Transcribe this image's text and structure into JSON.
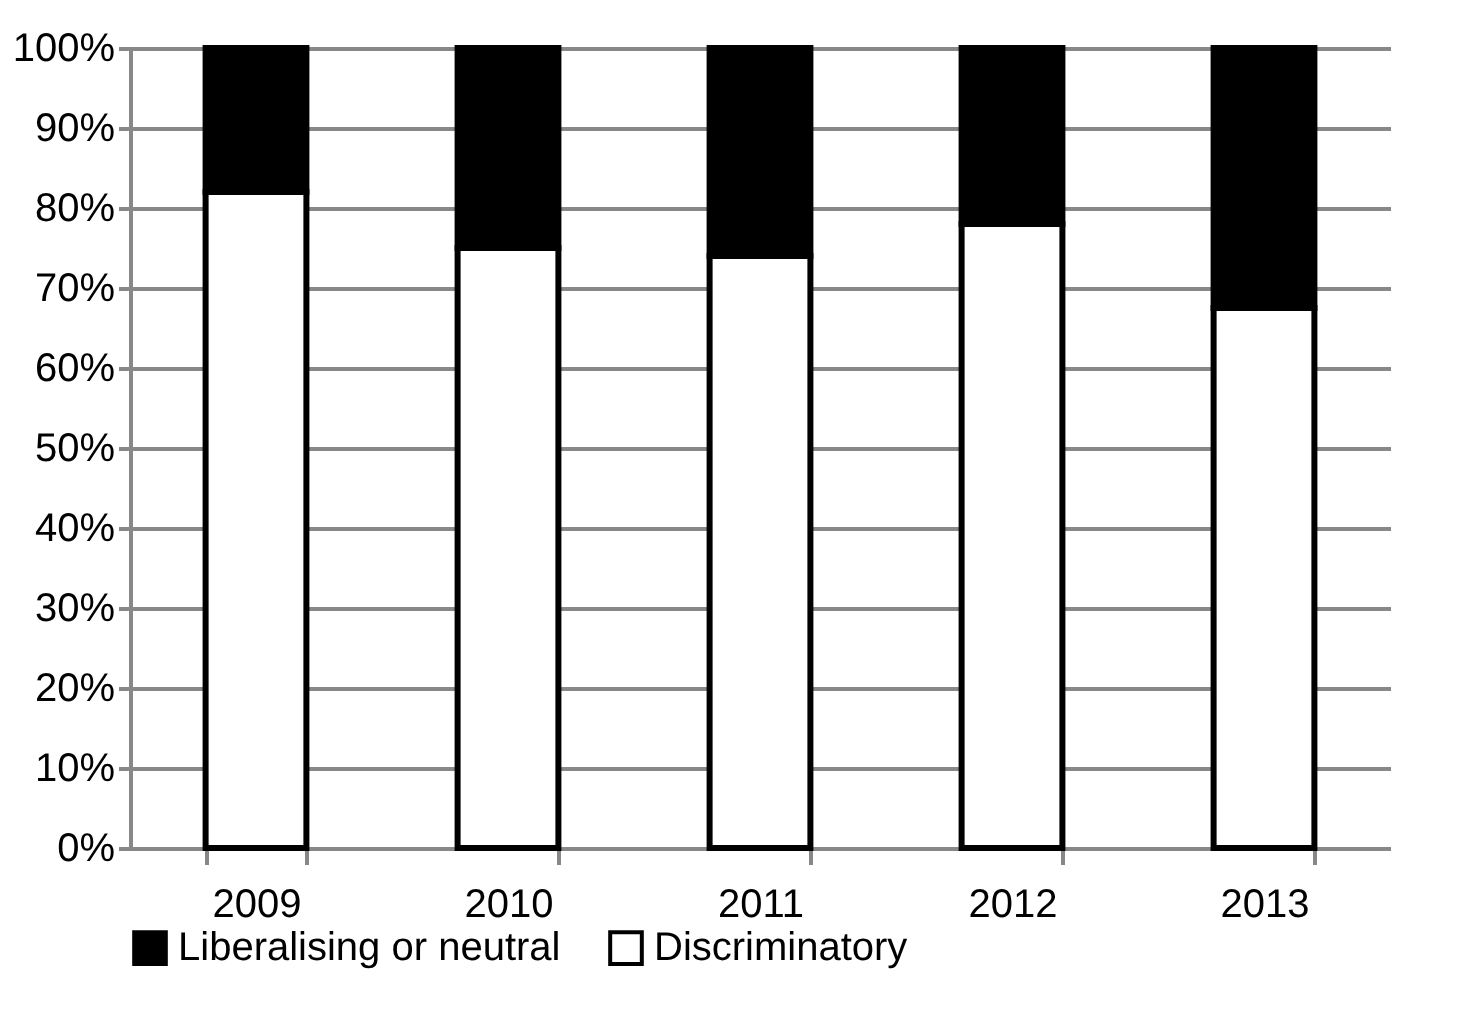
{
  "chart_data": {
    "type": "bar",
    "stacked": true,
    "categories": [
      "2009",
      "2010",
      "2011",
      "2012",
      "2013"
    ],
    "series": [
      {
        "name": "Discriminatory",
        "color": "#ffffff",
        "values": [
          82,
          75,
          74,
          78,
          67.5
        ]
      },
      {
        "name": "Liberalising or neutral",
        "color": "#000000",
        "values": [
          18,
          25,
          26,
          22,
          32.5
        ]
      }
    ],
    "ylim": [
      0,
      100
    ],
    "yticks": [
      {
        "value": 0,
        "label": "0%"
      },
      {
        "value": 10,
        "label": "10%"
      },
      {
        "value": 20,
        "label": "20%"
      },
      {
        "value": 30,
        "label": "30%"
      },
      {
        "value": 40,
        "label": "40%"
      },
      {
        "value": 50,
        "label": "50%"
      },
      {
        "value": 60,
        "label": "60%"
      },
      {
        "value": 70,
        "label": "70%"
      },
      {
        "value": 80,
        "label": "80%"
      },
      {
        "value": 90,
        "label": "90%"
      },
      {
        "value": 100,
        "label": "100%"
      }
    ],
    "grid": "y",
    "legend": "bottom"
  }
}
